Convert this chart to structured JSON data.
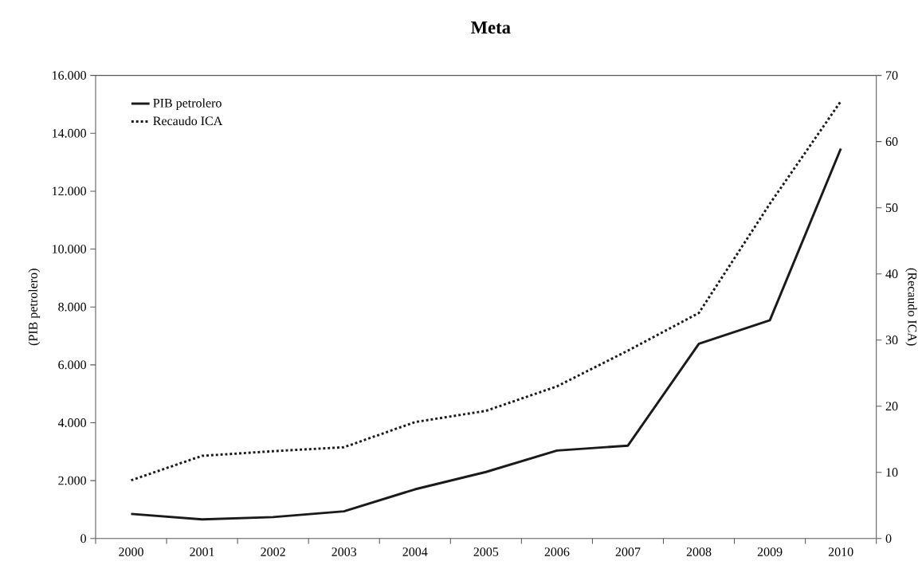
{
  "chart_data": {
    "type": "line",
    "title": "Meta",
    "ylabel": "(PIB petrolero)",
    "y2label": "(Recaudo ICA)",
    "categories": [
      "2000",
      "2001",
      "2002",
      "2003",
      "2004",
      "2005",
      "2006",
      "2007",
      "2008",
      "2009",
      "2010"
    ],
    "series": [
      {
        "name": "PIB petrolero",
        "color": "#1a1a1a",
        "line_style": "solid",
        "values": [
          850,
          660,
          740,
          940,
          1700,
          2300,
          3040,
          3210,
          6730,
          7540,
          13470
        ]
      },
      {
        "name": "Recaudo ICA",
        "color": "#1a1a1a",
        "line_style": "dotted",
        "axis": "y2",
        "values": [
          8.8,
          12.5,
          13.2,
          13.8,
          17.6,
          19.3,
          23.0,
          28.4,
          34.1,
          50.6,
          66.1
        ]
      }
    ],
    "ylim": [
      0,
      16000
    ],
    "yticks": [
      0,
      {
        "value": 2000,
        "label": "2.000"
      },
      {
        "value": 4000,
        "label": "4.000"
      },
      {
        "value": 6000,
        "label": "6.000"
      },
      {
        "value": 8000,
        "label": "8.000"
      },
      {
        "value": 10000,
        "label": "10.000"
      },
      {
        "value": 12000,
        "label": "12.000"
      },
      {
        "value": 14000,
        "label": "14.000"
      },
      {
        "value": 16000,
        "label": "16.000"
      }
    ],
    "y2lim": [
      0,
      70
    ],
    "y2ticks": [
      0,
      10,
      20,
      30,
      40,
      50,
      60,
      70
    ],
    "legend": "top left",
    "grid": false
  }
}
